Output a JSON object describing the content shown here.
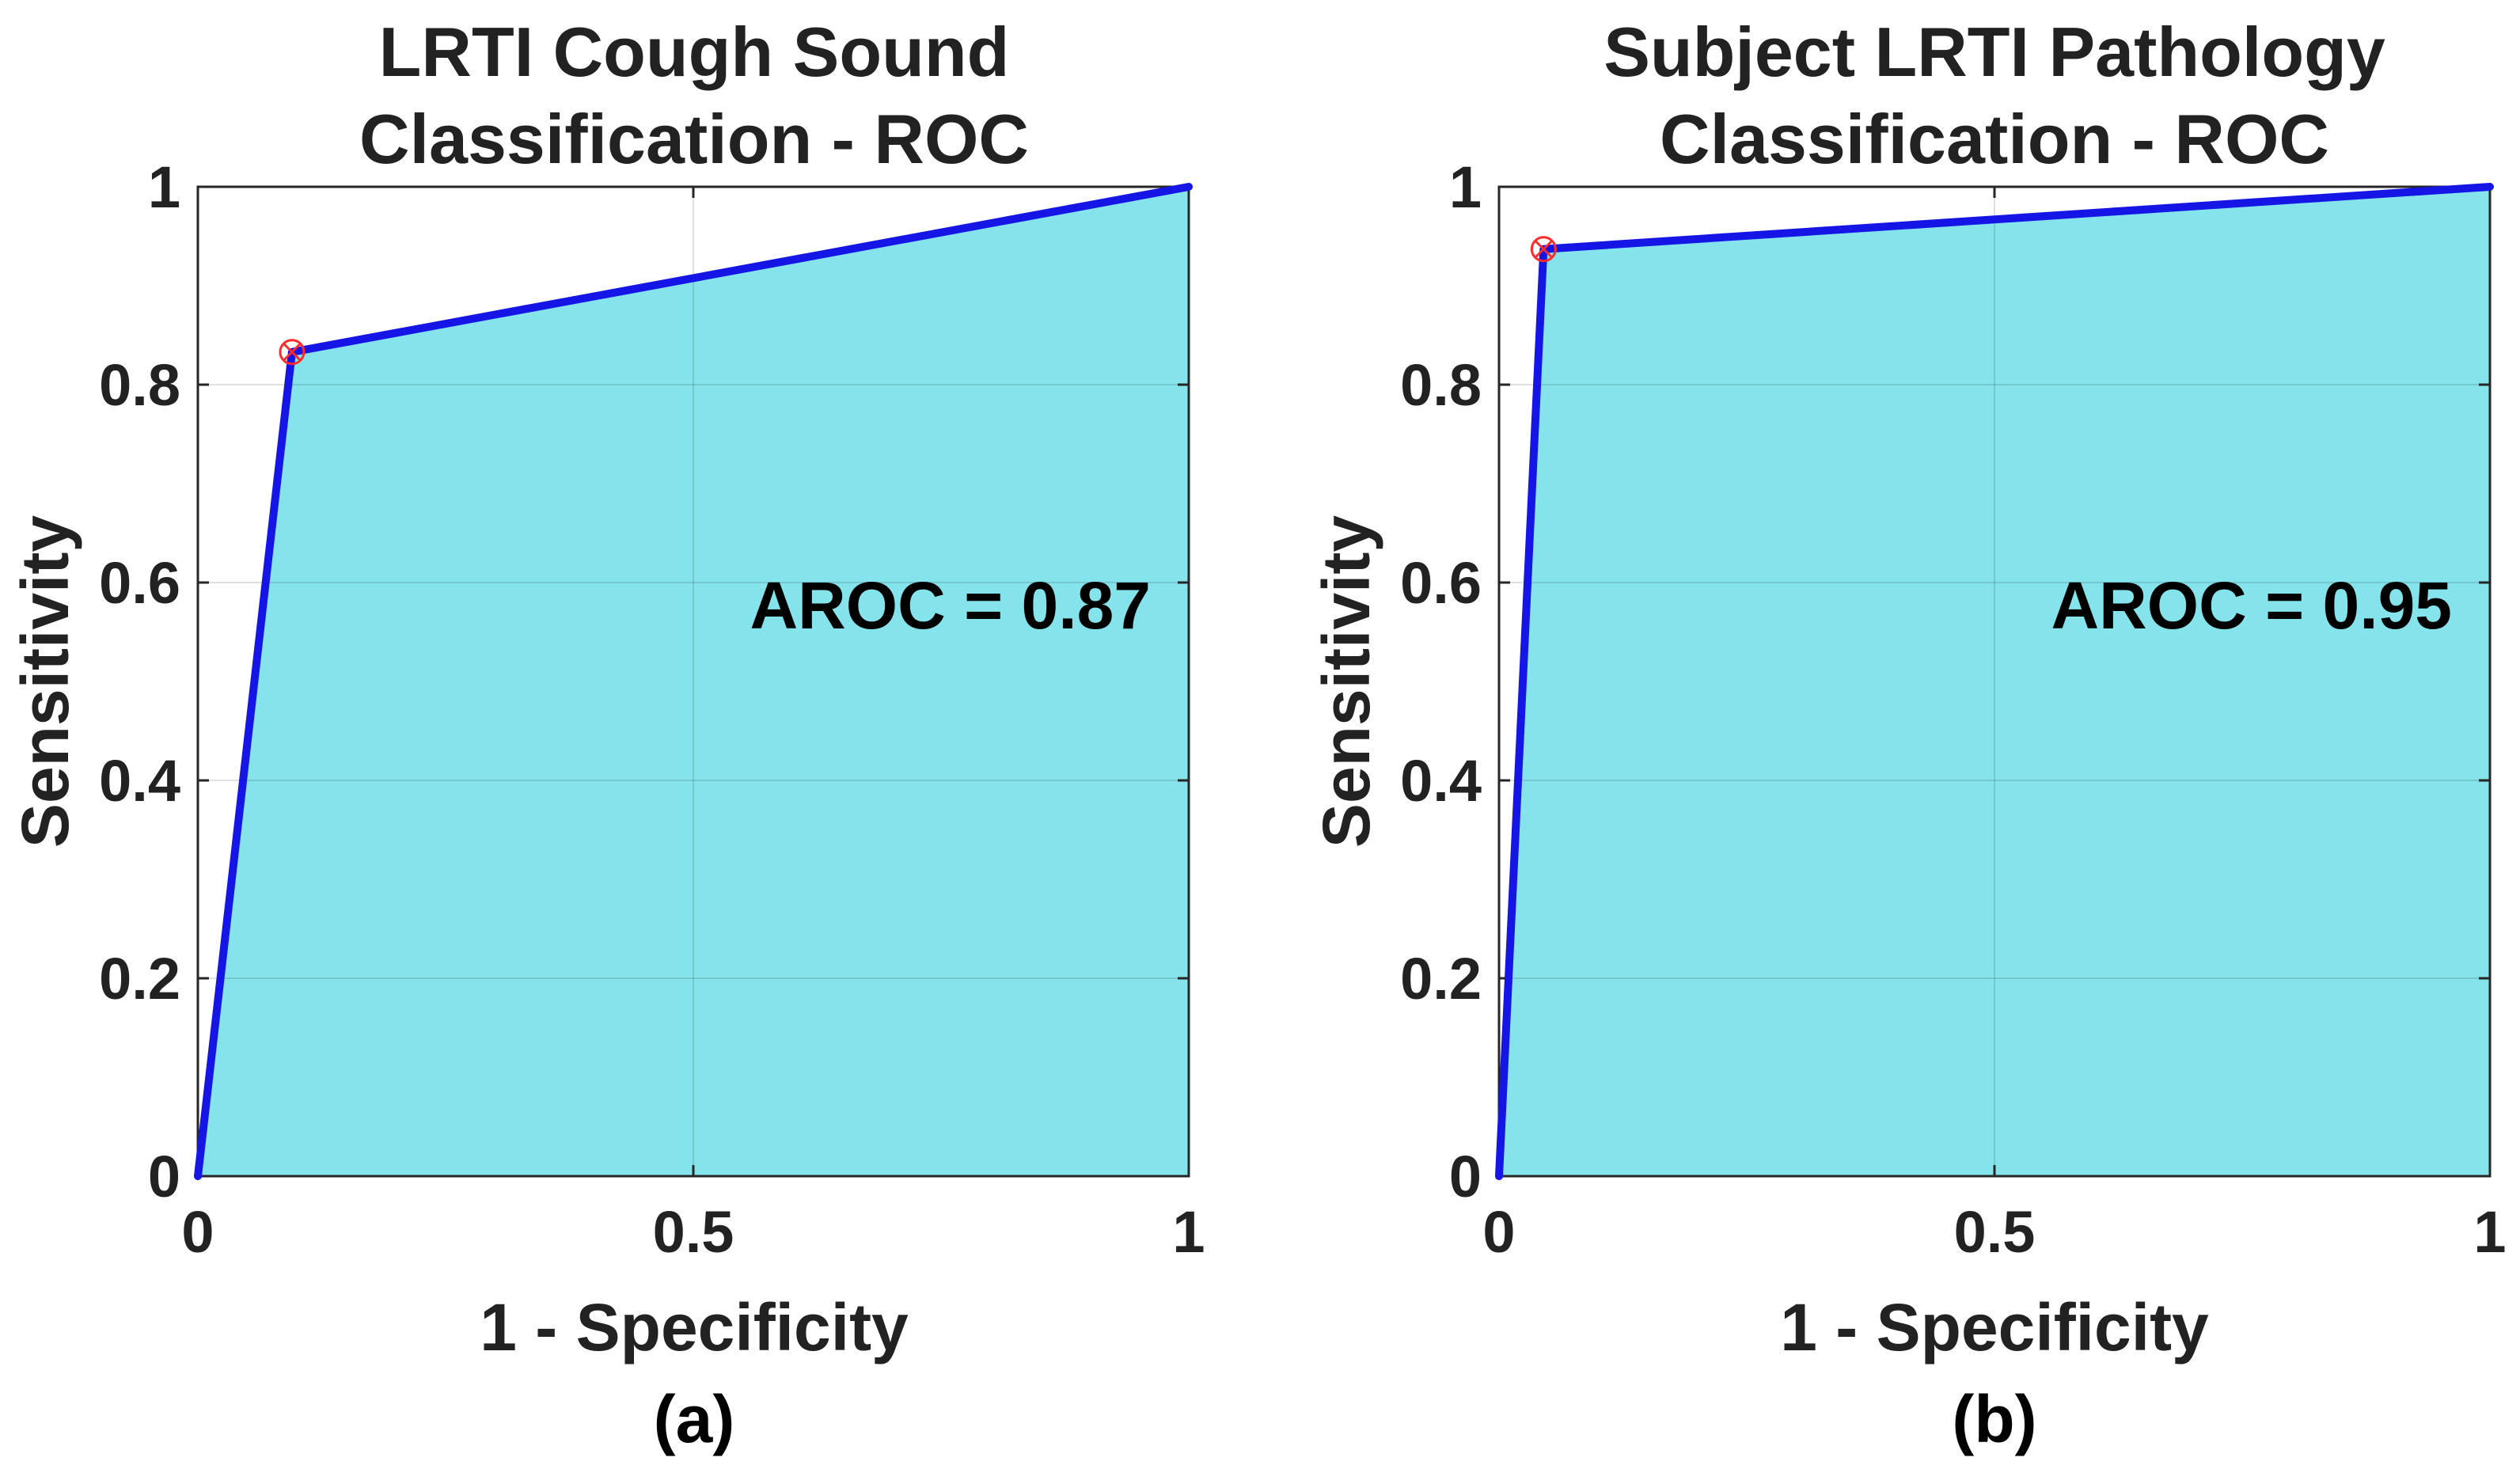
{
  "chart_data": [
    {
      "type": "area",
      "panel_caption": "(a)",
      "title": [
        "LRTI Cough Sound",
        "Classification - ROC"
      ],
      "xlabel": "1 - Specificity",
      "ylabel": "Sensitivity",
      "xlim": [
        0,
        1
      ],
      "ylim": [
        0,
        1
      ],
      "xticks": [
        0,
        0.5,
        1
      ],
      "xtick_labels": [
        "0",
        "0.5",
        "1"
      ],
      "yticks": [
        0,
        0.2,
        0.4,
        0.6,
        0.8,
        1
      ],
      "ytick_labels": [
        "0",
        "0.2",
        "0.4",
        "0.6",
        "0.8",
        "1"
      ],
      "grid": true,
      "series": [
        {
          "name": "ROC",
          "x": [
            0,
            0.095,
            1
          ],
          "y": [
            0,
            0.833,
            1
          ]
        }
      ],
      "operating_point": {
        "x": 0.095,
        "y": 0.833
      },
      "annotation": "AROC = 0.87",
      "fill_color": "#85e4eb",
      "line_color": "#1515e6",
      "marker_color": "#ff2a2a"
    },
    {
      "type": "area",
      "panel_caption": "(b)",
      "title": [
        "Subject LRTI Pathology",
        "Classification - ROC"
      ],
      "xlabel": "1 - Specificity",
      "ylabel": "Sensitivity",
      "xlim": [
        0,
        1
      ],
      "ylim": [
        0,
        1
      ],
      "xticks": [
        0,
        0.5,
        1
      ],
      "xtick_labels": [
        "0",
        "0.5",
        "1"
      ],
      "yticks": [
        0,
        0.2,
        0.4,
        0.6,
        0.8,
        1
      ],
      "ytick_labels": [
        "0",
        "0.2",
        "0.4",
        "0.6",
        "0.8",
        "1"
      ],
      "grid": true,
      "series": [
        {
          "name": "ROC",
          "x": [
            0,
            0.045,
            1
          ],
          "y": [
            0,
            0.937,
            1
          ]
        }
      ],
      "operating_point": {
        "x": 0.045,
        "y": 0.937
      },
      "annotation": "AROC = 0.95",
      "fill_color": "#85e4eb",
      "line_color": "#1515e6",
      "marker_color": "#ff2a2a"
    }
  ]
}
